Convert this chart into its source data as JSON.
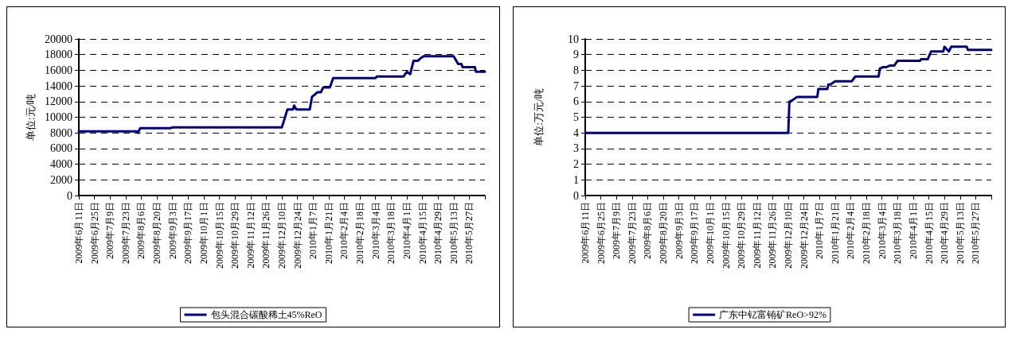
{
  "chart_data": [
    {
      "type": "line",
      "ylabel": "单位:元/吨",
      "xlim": [
        "2009-06-11",
        "2010-06-10"
      ],
      "ylim": [
        0,
        20000
      ],
      "yticks": [
        0,
        2000,
        4000,
        6000,
        8000,
        10000,
        12000,
        14000,
        16000,
        18000,
        20000
      ],
      "grid": "y",
      "legend": "bottom",
      "marker": "none",
      "line_style": "solid",
      "xticks": [
        {
          "value": "2009-06-11",
          "label": "2009年6月11日"
        },
        {
          "value": "2009-06-25",
          "label": "2009年6月25日"
        },
        {
          "value": "2009-07-09",
          "label": "2009年7月9日"
        },
        {
          "value": "2009-07-23",
          "label": "2009年7月23日"
        },
        {
          "value": "2009-08-06",
          "label": "2009年8月6日"
        },
        {
          "value": "2009-08-20",
          "label": "2009年8月20日"
        },
        {
          "value": "2009-09-03",
          "label": "2009年9月3日"
        },
        {
          "value": "2009-09-17",
          "label": "2009年9月17日"
        },
        {
          "value": "2009-10-01",
          "label": "2009年10月1日"
        },
        {
          "value": "2009-10-15",
          "label": "2009年10月15日"
        },
        {
          "value": "2009-10-29",
          "label": "2009年10月29日"
        },
        {
          "value": "2009-11-12",
          "label": "2009年11月12日"
        },
        {
          "value": "2009-11-26",
          "label": "2009年11月26日"
        },
        {
          "value": "2009-12-10",
          "label": "2009年12月10日"
        },
        {
          "value": "2009-12-24",
          "label": "2009年12月24日"
        },
        {
          "value": "2010-01-07",
          "label": "2010年1月7日"
        },
        {
          "value": "2010-01-21",
          "label": "2010年1月21日"
        },
        {
          "value": "2010-02-04",
          "label": "2010年2月4日"
        },
        {
          "value": "2010-02-18",
          "label": "2010年2月18日"
        },
        {
          "value": "2010-03-04",
          "label": "2010年3月4日"
        },
        {
          "value": "2010-03-18",
          "label": "2010年3月18日"
        },
        {
          "value": "2010-04-01",
          "label": "2010年4月1日"
        },
        {
          "value": "2010-04-15",
          "label": "2010年4月15日"
        },
        {
          "value": "2010-04-29",
          "label": "2010年4月29日"
        },
        {
          "value": "2010-05-13",
          "label": "2010年5月13日"
        },
        {
          "value": "2010-05-27",
          "label": "2010年5月27日"
        },
        {
          "value": "2010-06-10",
          "label": null
        }
      ],
      "series": [
        {
          "name": "包头混合碳酸稀土45%ReO",
          "color": "#000080",
          "x": [
            "2009-06-11",
            "2009-08-02",
            "2009-08-03",
            "2009-08-05",
            "2009-09-01",
            "2009-09-03",
            "2009-12-10",
            "2009-12-15",
            "2009-12-20",
            "2009-12-21",
            "2009-12-23",
            "2010-01-04",
            "2010-01-06",
            "2010-01-11",
            "2010-01-14",
            "2010-01-16",
            "2010-01-22",
            "2010-01-25",
            "2010-03-04",
            "2010-03-05",
            "2010-03-29",
            "2010-04-01",
            "2010-04-04",
            "2010-04-07",
            "2010-04-11",
            "2010-04-13",
            "2010-04-16",
            "2010-05-13",
            "2010-05-17",
            "2010-05-20",
            "2010-05-21",
            "2010-06-01",
            "2010-06-02",
            "2010-06-10"
          ],
          "values": [
            8200,
            8200,
            8000,
            8600,
            8600,
            8700,
            8700,
            11000,
            11000,
            11500,
            11000,
            11000,
            12600,
            13200,
            13200,
            13800,
            13800,
            15000,
            15000,
            15200,
            15200,
            15800,
            15500,
            17200,
            17200,
            17500,
            17800,
            17800,
            16800,
            16800,
            16400,
            16400,
            15800,
            15800
          ]
        }
      ]
    },
    {
      "type": "line",
      "ylabel": "单位:万元/吨",
      "xlim": [
        "2009-06-11",
        "2010-06-10"
      ],
      "ylim": [
        0,
        10
      ],
      "yticks": [
        0,
        1,
        2,
        3,
        4,
        5,
        6,
        7,
        8,
        9,
        10
      ],
      "grid": "y",
      "legend": "bottom",
      "marker": "none",
      "line_style": "solid",
      "xticks": [
        {
          "value": "2009-06-11",
          "label": "2009年6月11日"
        },
        {
          "value": "2009-06-25",
          "label": "2009年6月25日"
        },
        {
          "value": "2009-07-09",
          "label": "2009年7月9日"
        },
        {
          "value": "2009-07-23",
          "label": "2009年7月23日"
        },
        {
          "value": "2009-08-06",
          "label": "2009年8月6日"
        },
        {
          "value": "2009-08-20",
          "label": "2009年8月20日"
        },
        {
          "value": "2009-09-03",
          "label": "2009年9月3日"
        },
        {
          "value": "2009-09-17",
          "label": "2009年9月17日"
        },
        {
          "value": "2009-10-01",
          "label": "2009年10月1日"
        },
        {
          "value": "2009-10-15",
          "label": "2009年10月15日"
        },
        {
          "value": "2009-10-29",
          "label": "2009年10月29日"
        },
        {
          "value": "2009-11-12",
          "label": "2009年11月12日"
        },
        {
          "value": "2009-11-26",
          "label": "2009年11月26日"
        },
        {
          "value": "2009-12-10",
          "label": "2009年12月10日"
        },
        {
          "value": "2009-12-24",
          "label": "2009年12月24日"
        },
        {
          "value": "2010-01-07",
          "label": "2010年1月7日"
        },
        {
          "value": "2010-01-21",
          "label": "2010年1月21日"
        },
        {
          "value": "2010-02-04",
          "label": "2010年2月4日"
        },
        {
          "value": "2010-02-18",
          "label": "2010年2月18日"
        },
        {
          "value": "2010-03-04",
          "label": "2010年3月4日"
        },
        {
          "value": "2010-03-18",
          "label": "2010年3月18日"
        },
        {
          "value": "2010-04-01",
          "label": "2010年4月1日"
        },
        {
          "value": "2010-04-15",
          "label": "2010年4月15日"
        },
        {
          "value": "2010-04-29",
          "label": "2010年4月29日"
        },
        {
          "value": "2010-05-13",
          "label": "2010年5月13日"
        },
        {
          "value": "2010-05-27",
          "label": "2010年5月27日"
        },
        {
          "value": "2010-06-10",
          "label": null
        }
      ],
      "series": [
        {
          "name": "广东中钇富铕矿ReO>92%",
          "color": "#000080",
          "x": [
            "2009-06-11",
            "2009-12-10",
            "2009-12-11",
            "2009-12-14",
            "2009-12-18",
            "2010-01-05",
            "2010-01-06",
            "2010-01-14",
            "2010-01-15",
            "2010-01-17",
            "2010-01-21",
            "2010-02-05",
            "2010-02-08",
            "2010-03-01",
            "2010-03-02",
            "2010-03-05",
            "2010-03-08",
            "2010-03-11",
            "2010-03-15",
            "2010-03-18",
            "2010-04-07",
            "2010-04-08",
            "2010-04-14",
            "2010-04-17",
            "2010-04-28",
            "2010-04-29",
            "2010-05-03",
            "2010-05-05",
            "2010-05-19",
            "2010-05-20",
            "2010-06-10"
          ],
          "values": [
            4,
            4,
            6,
            6.1,
            6.3,
            6.3,
            6.8,
            6.8,
            7.1,
            7.1,
            7.3,
            7.3,
            7.6,
            7.6,
            8.1,
            8.2,
            8.2,
            8.3,
            8.3,
            8.6,
            8.6,
            8.7,
            8.7,
            9.2,
            9.2,
            9.5,
            9.2,
            9.5,
            9.5,
            9.3,
            9.3
          ]
        }
      ]
    }
  ]
}
